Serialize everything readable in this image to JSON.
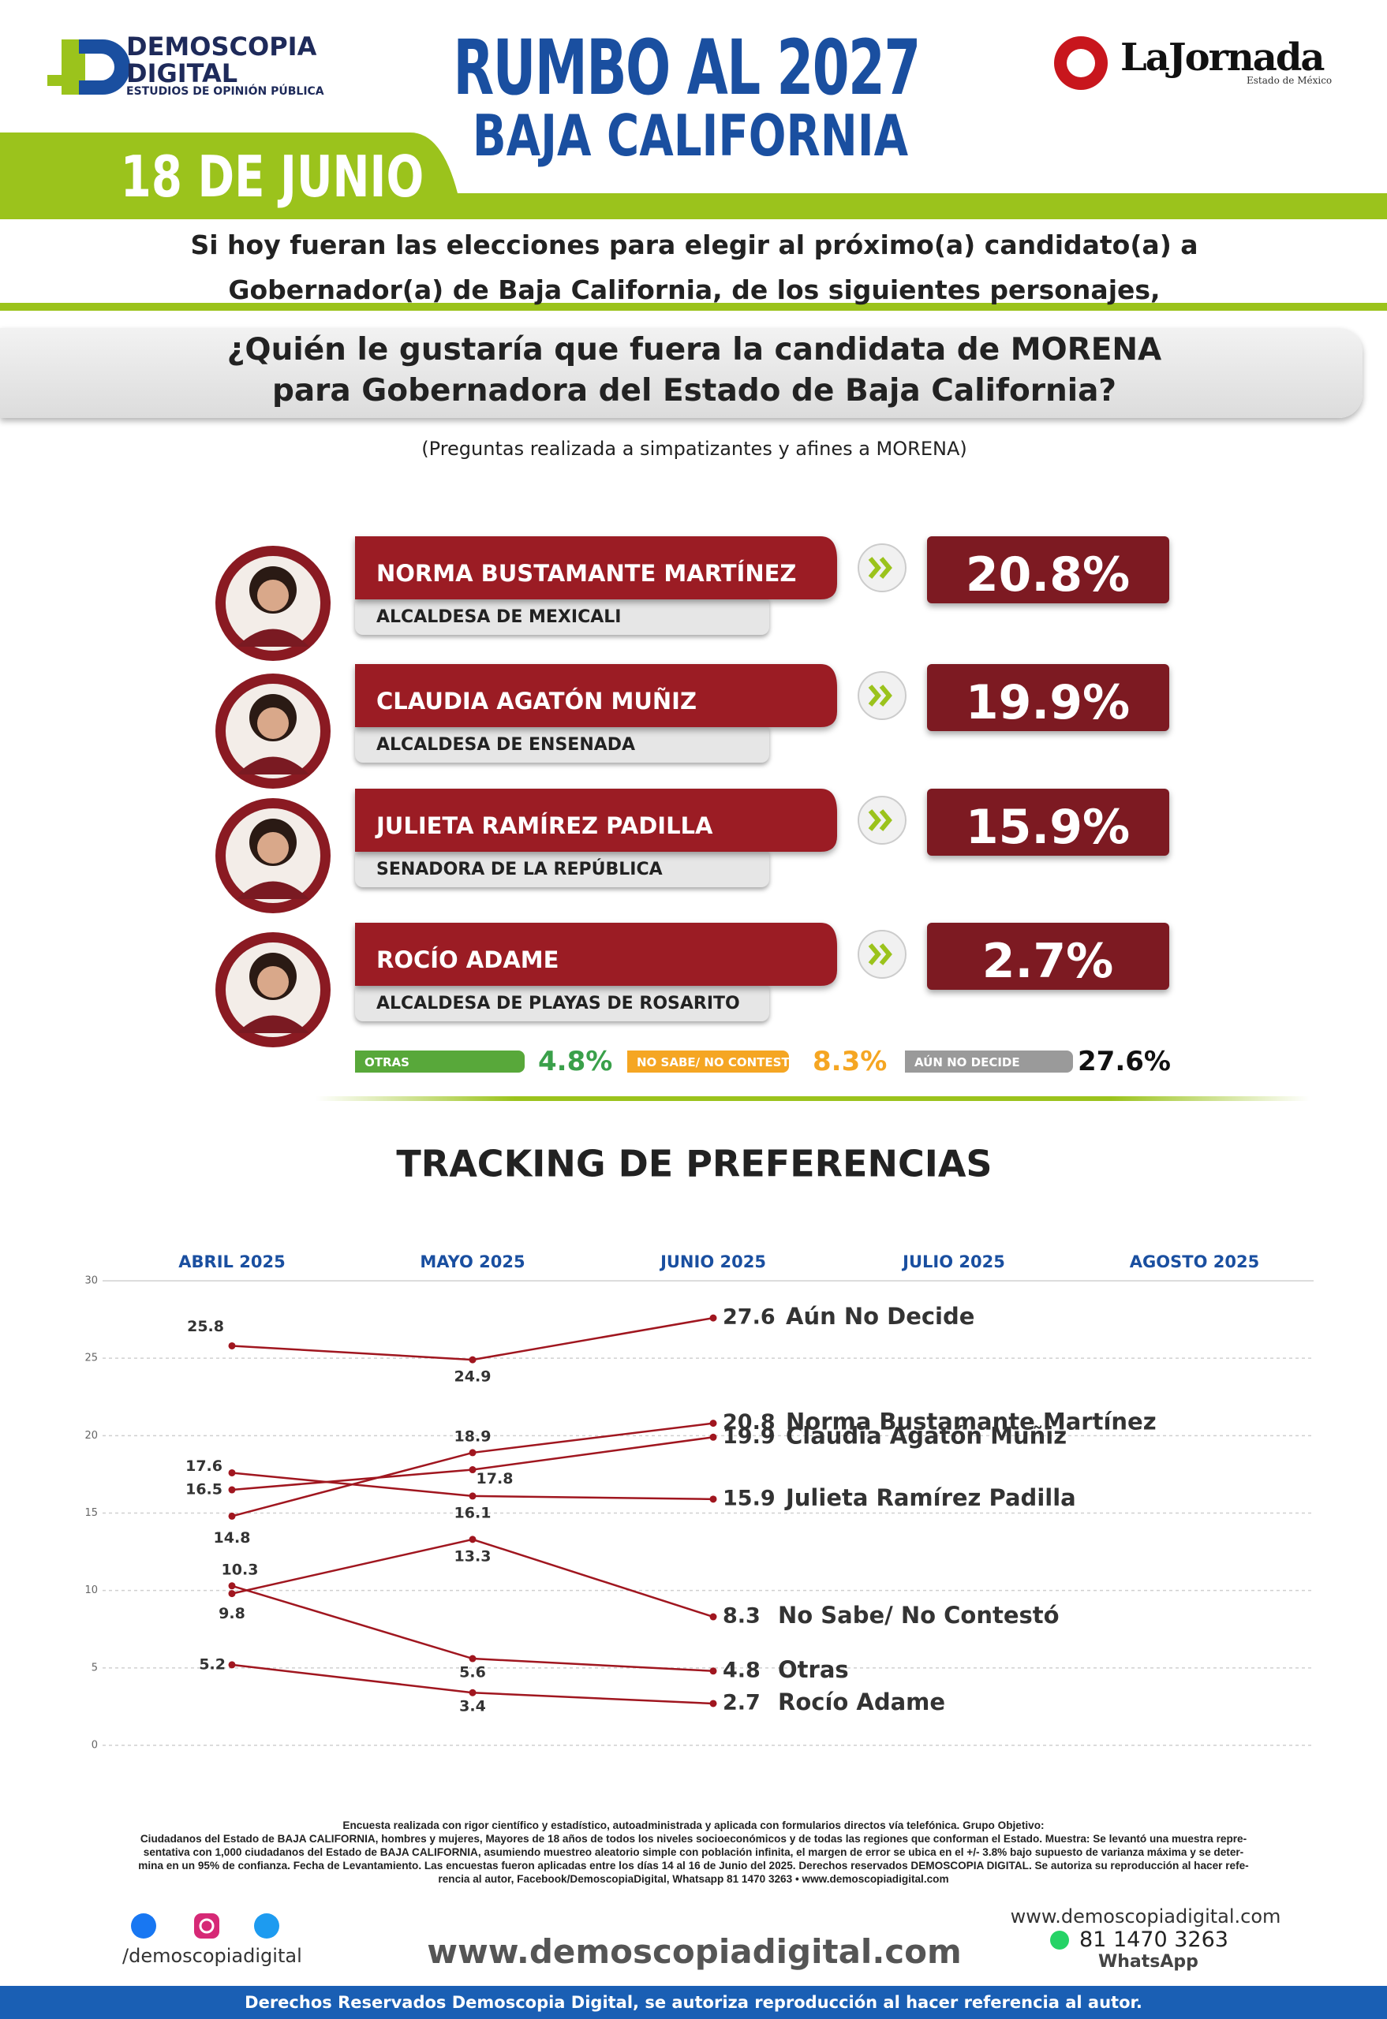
{
  "header": {
    "brand": "DEMOSCOPIA",
    "brand2": "DIGITAL",
    "brand_sub": "ESTUDIOS DE OPINIÓN PÚBLICA",
    "title": "RUMBO AL 2027",
    "subtitle": "BAJA CALIFORNIA",
    "date": "18 DE JUNIO",
    "partner": "LaJornada",
    "partner_sub": "Estado de México"
  },
  "intro": [
    "Si hoy fueran las elecciones para elegir al próximo(a) candidato(a) a",
    "Gobernador(a) de Baja California, de los siguientes personajes,"
  ],
  "question": [
    "¿Quién le gustaría que fuera la candidata de MORENA",
    "para Gobernadora del Estado de Baja California?"
  ],
  "note": "(Preguntas realizada a simpatizantes y afines a MORENA)",
  "candidates": [
    {
      "name": "NORMA BUSTAMANTE MARTÍNEZ",
      "role": "ALCALDESA DE MEXICALI",
      "result": "20.8%"
    },
    {
      "name": "CLAUDIA AGATÓN MUÑIZ",
      "role": "ALCALDESA DE ENSENADA",
      "result": "19.9%"
    },
    {
      "name": "JULIETA RAMÍREZ PADILLA",
      "role": "SENADORA DE LA REPÚBLICA",
      "result": "15.9%"
    },
    {
      "name": "ROCÍO ADAME",
      "role": "ALCALDESA DE PLAYAS DE ROSARITO",
      "result": "2.7%"
    }
  ],
  "others": [
    {
      "name": "OTRAS",
      "result": "4.8%"
    },
    {
      "name": "NO SABE/ NO CONTESTÓ",
      "result": "8.3%"
    },
    {
      "name": "AÚN NO DECIDE",
      "result": "27.6%"
    }
  ],
  "chart_data": {
    "type": "line",
    "title": "TRACKING DE PREFERENCIAS",
    "categories": [
      "ABRIL 2025",
      "MAYO 2025",
      "JUNIO 2025",
      "JULIO 2025",
      "AGOSTO 2025"
    ],
    "ylim": [
      0,
      30
    ],
    "yticks": [
      0,
      5,
      10,
      15,
      20,
      25,
      30
    ],
    "grid": true,
    "series": [
      {
        "name": "Aún No Decide",
        "color": "#a0161f",
        "values": [
          25.8,
          24.9,
          27.6,
          null,
          null
        ]
      },
      {
        "name": "Norma Bustamante Martínez",
        "color": "#a0161f",
        "values": [
          14.8,
          18.9,
          20.8,
          null,
          null
        ]
      },
      {
        "name": "Claudia Agatón Muñiz",
        "color": "#a0161f",
        "values": [
          16.5,
          17.8,
          19.9,
          null,
          null
        ]
      },
      {
        "name": "Julieta Ramírez Padilla",
        "color": "#a0161f",
        "values": [
          17.6,
          16.1,
          15.9,
          null,
          null
        ]
      },
      {
        "name": "No Sabe/ No Contestó",
        "color": "#a0161f",
        "values": [
          9.8,
          13.3,
          8.3,
          null,
          null
        ]
      },
      {
        "name": "Otras",
        "color": "#a0161f",
        "values": [
          10.3,
          5.6,
          4.8,
          null,
          null
        ]
      },
      {
        "name": "Rocío Adame",
        "color": "#a0161f",
        "values": [
          5.2,
          3.4,
          2.7,
          null,
          null
        ]
      }
    ]
  },
  "footer": {
    "method": [
      "Encuesta realizada con rigor científico y estadístico, autoadministrada y aplicada con formularios directos vía telefónica. Grupo Objetivo:",
      "Ciudadanos del Estado de BAJA CALIFORNIA, hombres y mujeres, Mayores de 18 años de todos los niveles socioeconómicos y de todas las regiones que conforman el Estado. Muestra: Se levantó una muestra repre-",
      "sentativa con 1,000 ciudadanos del Estado de BAJA CALIFORNIA, asumiendo muestreo aleatorio simple con población infinita, el margen de error se ubica en el +/- 3.8% bajo supuesto de varianza máxima y se deter-",
      "mina en un 95% de confianza. Fecha de Levantamiento. Las encuestas fueron aplicadas entre los días 14 al 16 de Junio del 2025. Derechos reservados DEMOSCOPIA DIGITAL. Se autoriza su reproducción al hacer refe-",
      "rencia al autor, Facebook/DemoscopiaDigital, Whatsapp 81 1470 3263 • www.demoscopiadigital.com"
    ],
    "social": "/demoscopiadigital",
    "website": "www.demoscopiadigital.com",
    "website_small": "www.demoscopiadigital.com",
    "phone": "81 1470 3263",
    "whatsapp": "WhatsApp",
    "rights": "Derechos Reservados Demoscopia Digital, se autoriza reproducción al hacer referencia al autor."
  }
}
